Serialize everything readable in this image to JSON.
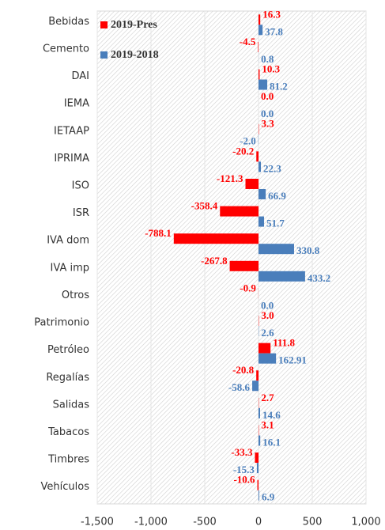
{
  "chart_data": {
    "type": "barh",
    "categories": [
      "Bebidas",
      "Cemento",
      "DAI",
      "IEMA",
      "IETAAP",
      "IPRIMA",
      "ISO",
      "ISR",
      "IVA dom",
      "IVA imp",
      "Otros",
      "Patrimonio",
      "Petróleo",
      "Regalías",
      "Salidas",
      "Tabacos",
      "Timbres",
      "Vehículos"
    ],
    "series": [
      {
        "name": "2019-Pres",
        "color": "#ff0000",
        "values": [
          16.3,
          -4.5,
          10.3,
          0.0,
          3.3,
          -20.2,
          -121.3,
          -358.4,
          -788.1,
          -267.8,
          -0.9,
          3.0,
          111.8,
          -20.8,
          2.7,
          3.1,
          -33.3,
          -10.6
        ],
        "value_labels": [
          "16.3",
          "-4.5",
          "10.3",
          "0.0",
          "3.3",
          "-20.2",
          "-121.3",
          "-358.4",
          "-788.1",
          "-267.8",
          "-0.9",
          "3.0",
          "111.8",
          "-20.8",
          "2.7",
          "3.1",
          "-33.3",
          "-10.6"
        ]
      },
      {
        "name": "2019-2018",
        "color": "#4a7ebb",
        "values": [
          37.8,
          0.8,
          81.2,
          0.0,
          -2.0,
          22.3,
          66.9,
          51.7,
          330.8,
          433.2,
          0.0,
          2.6,
          162.91,
          -58.6,
          14.6,
          16.1,
          -15.3,
          6.9
        ],
        "value_labels": [
          "37.8",
          "0.8",
          "81.2",
          "0.0",
          "-2.0",
          "22.3",
          "66.9",
          "51.7",
          "330.8",
          "433.2",
          "0.0",
          "2.6",
          "162.91",
          "-58.6",
          "14.6",
          "16.1",
          "-15.3",
          "6.9"
        ]
      }
    ],
    "xlim": [
      -1500,
      1000
    ],
    "xticks": [
      {
        "value": -1500,
        "label": "-1,500"
      },
      {
        "value": -1000,
        "label": "-1,000"
      },
      -500,
      0,
      500,
      {
        "value": 1000,
        "label": "1,000"
      }
    ],
    "grid": true,
    "legend": "upper left"
  }
}
